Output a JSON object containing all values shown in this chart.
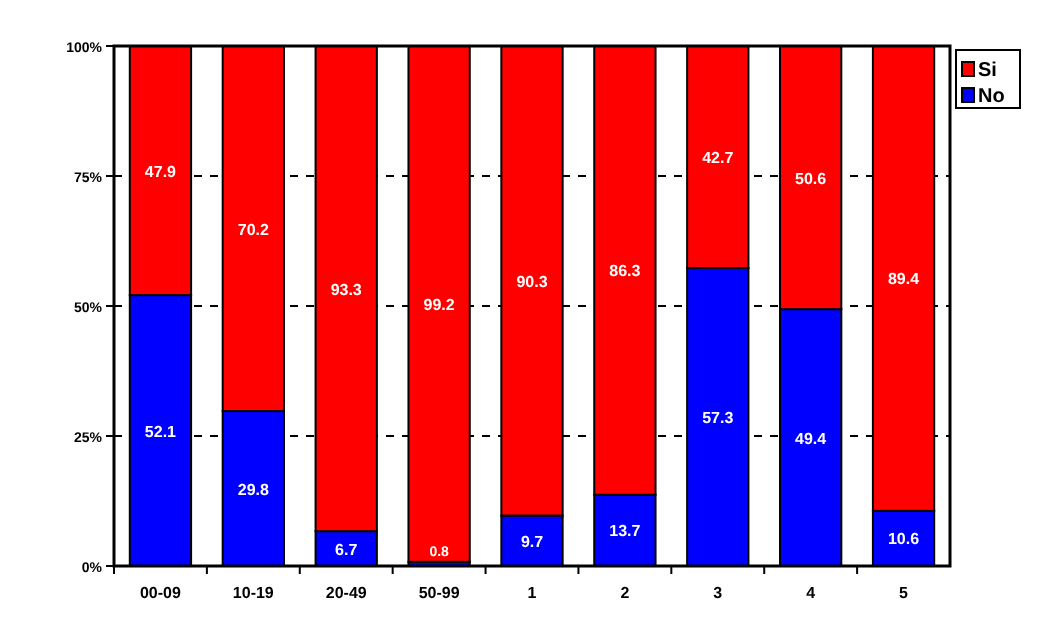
{
  "chart_data": {
    "type": "bar",
    "stacked": true,
    "categories": [
      "00-09",
      "10-19",
      "20-49",
      "50-99",
      "1",
      "2",
      "3",
      "4",
      "5"
    ],
    "series": [
      {
        "name": "No",
        "color": "#0000ff",
        "values": [
          52.1,
          29.8,
          6.7,
          0.8,
          9.7,
          13.7,
          57.3,
          49.4,
          10.6
        ]
      },
      {
        "name": "Si",
        "color": "#ff0000",
        "values": [
          47.9,
          70.2,
          93.3,
          99.2,
          90.3,
          86.3,
          42.7,
          50.6,
          89.4
        ]
      }
    ],
    "ylim": [
      0,
      100
    ],
    "yticks": [
      {
        "value": 0,
        "label": "0%"
      },
      {
        "value": 25,
        "label": "25%"
      },
      {
        "value": 50,
        "label": "50%"
      },
      {
        "value": 75,
        "label": "75%"
      },
      {
        "value": 100,
        "label": "100%"
      }
    ],
    "grid": "y",
    "data_labels": true,
    "legend": "top right"
  }
}
